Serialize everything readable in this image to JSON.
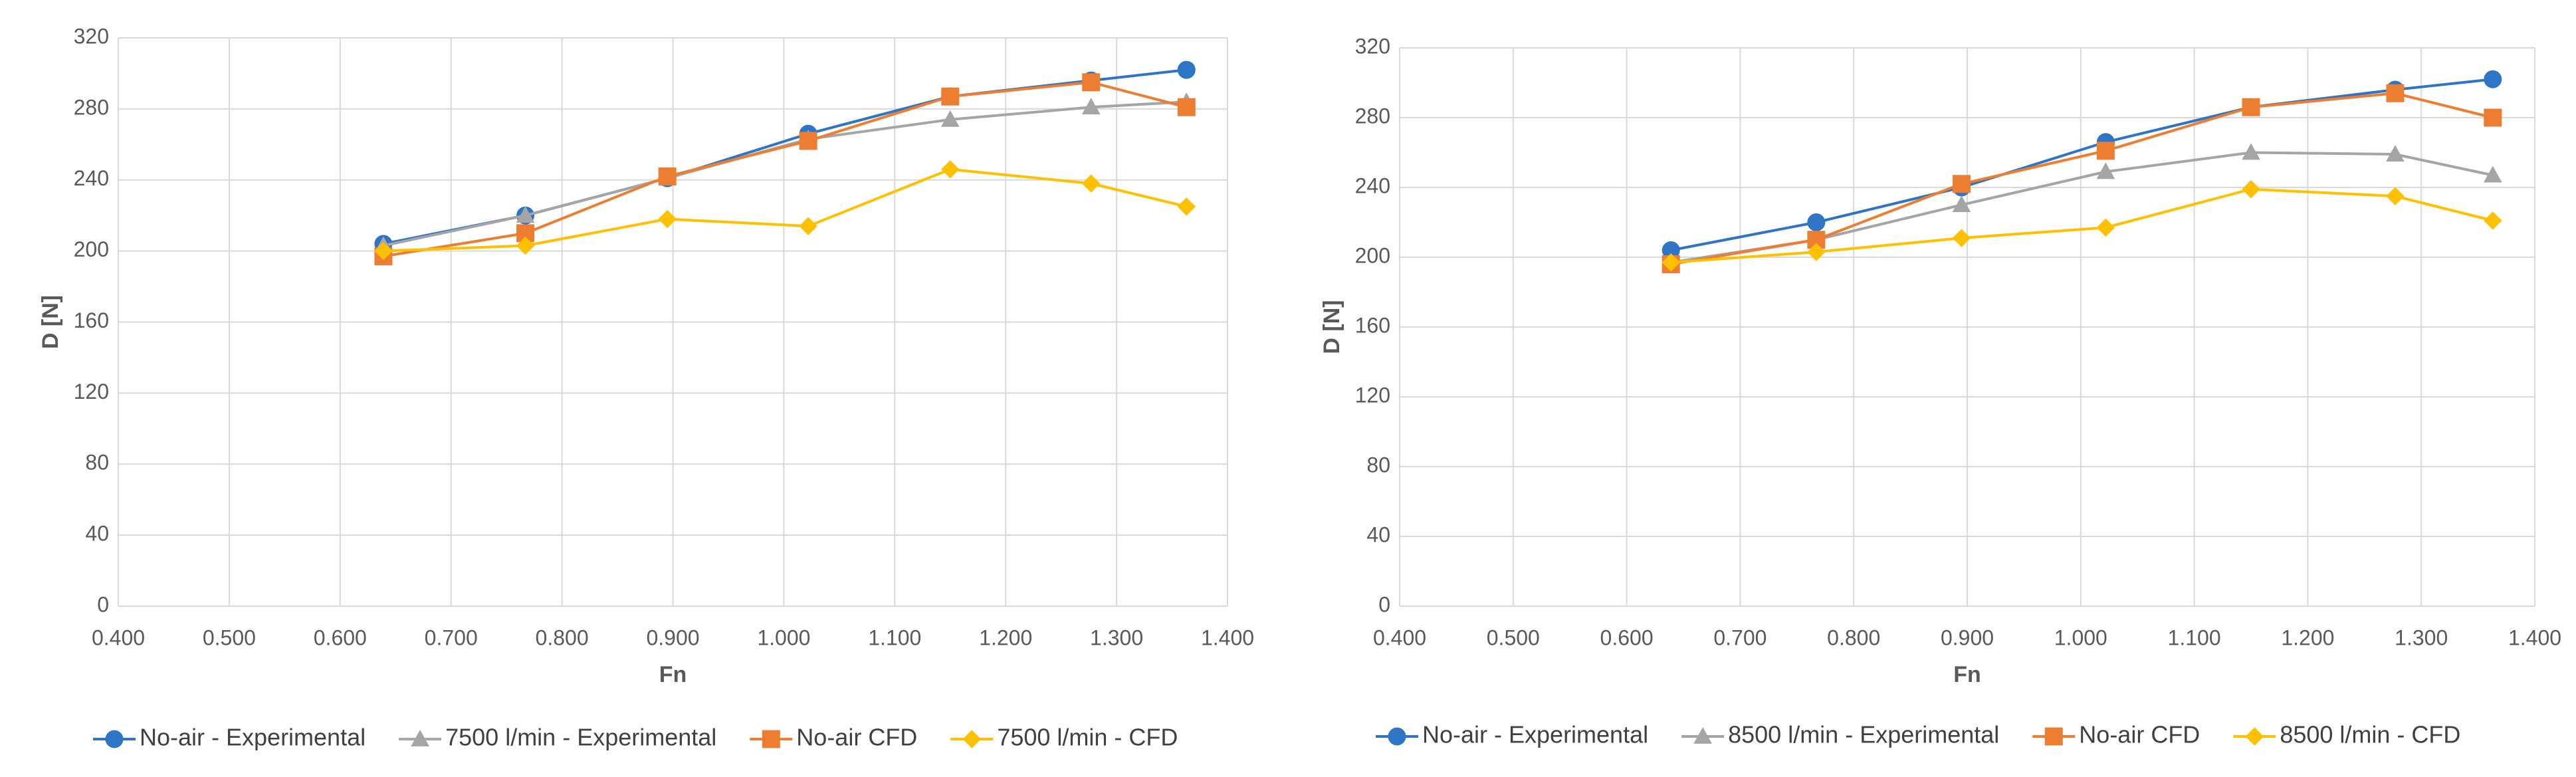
{
  "chart_data": [
    {
      "type": "line",
      "y_label": "D [N]",
      "x_label": "Fn",
      "x": [
        0.639,
        0.767,
        0.895,
        1.022,
        1.15,
        1.277,
        1.363
      ],
      "xlim": [
        0.4,
        1.4
      ],
      "xticks": [
        {
          "value": 0.4,
          "label": "0.400"
        },
        {
          "value": 0.5,
          "label": "0.500"
        },
        {
          "value": 0.6,
          "label": "0.600"
        },
        {
          "value": 0.7,
          "label": "0.700"
        },
        {
          "value": 0.8,
          "label": "0.800"
        },
        {
          "value": 0.9,
          "label": "0.900"
        },
        {
          "value": 1.0,
          "label": "1.000"
        },
        {
          "value": 1.1,
          "label": "1.100"
        },
        {
          "value": 1.2,
          "label": "1.200"
        },
        {
          "value": 1.3,
          "label": "1.300"
        },
        {
          "value": 1.4,
          "label": "1.400"
        }
      ],
      "ylim": [
        0,
        320
      ],
      "yticks": [
        0,
        40,
        80,
        120,
        160,
        200,
        240,
        280,
        320
      ],
      "grid": true,
      "legend": "bottom",
      "series": [
        {
          "name": "No-air - Experimental",
          "color": "#2f75c5",
          "marker": "circle",
          "values": [
            204,
            220,
            241,
            266,
            287,
            296,
            302
          ]
        },
        {
          "name": "7500 l/min - Experimental",
          "color": "#a5a5a5",
          "marker": "triangle",
          "values": [
            203,
            220,
            241,
            263,
            274,
            281,
            284
          ]
        },
        {
          "name": "No-air CFD",
          "color": "#ed7d31",
          "marker": "square",
          "values": [
            197,
            210,
            242,
            262,
            287,
            295,
            281
          ]
        },
        {
          "name": "7500 l/min - CFD",
          "color": "#ffc000",
          "marker": "diamond",
          "values": [
            200,
            203,
            218,
            214,
            246,
            238,
            225
          ]
        }
      ]
    },
    {
      "type": "line",
      "y_label": "D [N]",
      "x_label": "Fn",
      "x": [
        0.639,
        0.767,
        0.895,
        1.022,
        1.15,
        1.277,
        1.363
      ],
      "xlim": [
        0.4,
        1.4
      ],
      "xticks": [
        {
          "value": 0.4,
          "label": "0.400"
        },
        {
          "value": 0.5,
          "label": "0.500"
        },
        {
          "value": 0.6,
          "label": "0.600"
        },
        {
          "value": 0.7,
          "label": "0.700"
        },
        {
          "value": 0.8,
          "label": "0.800"
        },
        {
          "value": 0.9,
          "label": "0.900"
        },
        {
          "value": 1.0,
          "label": "1.000"
        },
        {
          "value": 1.1,
          "label": "1.100"
        },
        {
          "value": 1.2,
          "label": "1.200"
        },
        {
          "value": 1.3,
          "label": "1.300"
        },
        {
          "value": 1.4,
          "label": "1.400"
        }
      ],
      "ylim": [
        0,
        320
      ],
      "yticks": [
        0,
        40,
        80,
        120,
        160,
        200,
        240,
        280,
        320
      ],
      "grid": true,
      "legend": "bottom",
      "series": [
        {
          "name": "No-air - Experimental",
          "color": "#2f75c5",
          "marker": "circle",
          "values": [
            204,
            220,
            240,
            266,
            286,
            296,
            302
          ]
        },
        {
          "name": "8500 l/min - Experimental",
          "color": "#a5a5a5",
          "marker": "triangle",
          "values": [
            197,
            210,
            230,
            249,
            260,
            259,
            247
          ]
        },
        {
          "name": "No-air CFD",
          "color": "#ed7d31",
          "marker": "square",
          "values": [
            196,
            210,
            242,
            261,
            286,
            294,
            280
          ]
        },
        {
          "name": "8500 l/min - CFD",
          "color": "#ffc000",
          "marker": "diamond",
          "values": [
            197,
            203,
            211,
            217,
            239,
            235,
            221
          ]
        }
      ]
    }
  ]
}
